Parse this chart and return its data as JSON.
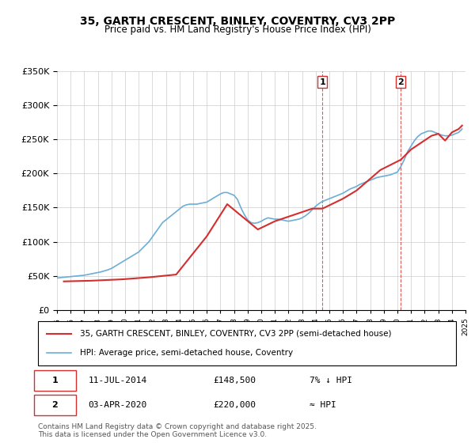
{
  "title": "35, GARTH CRESCENT, BINLEY, COVENTRY, CV3 2PP",
  "subtitle": "Price paid vs. HM Land Registry's House Price Index (HPI)",
  "legend_line1": "35, GARTH CRESCENT, BINLEY, COVENTRY, CV3 2PP (semi-detached house)",
  "legend_line2": "HPI: Average price, semi-detached house, Coventry",
  "marker1_label": "1",
  "marker2_label": "2",
  "marker1_date": "11-JUL-2014",
  "marker1_price": "£148,500",
  "marker1_note": "7% ↓ HPI",
  "marker2_date": "03-APR-2020",
  "marker2_price": "£220,000",
  "marker2_note": "≈ HPI",
  "footnote": "Contains HM Land Registry data © Crown copyright and database right 2025.\nThis data is licensed under the Open Government Licence v3.0.",
  "hpi_color": "#6baed6",
  "price_color": "#d32f2f",
  "marker_vline_color": "#d32f2f",
  "ylim": [
    0,
    350000
  ],
  "hpi_x": [
    1995.0,
    1995.25,
    1995.5,
    1995.75,
    1996.0,
    1996.25,
    1996.5,
    1996.75,
    1997.0,
    1997.25,
    1997.5,
    1997.75,
    1998.0,
    1998.25,
    1998.5,
    1998.75,
    1999.0,
    1999.25,
    1999.5,
    1999.75,
    2000.0,
    2000.25,
    2000.5,
    2000.75,
    2001.0,
    2001.25,
    2001.5,
    2001.75,
    2002.0,
    2002.25,
    2002.5,
    2002.75,
    2003.0,
    2003.25,
    2003.5,
    2003.75,
    2004.0,
    2004.25,
    2004.5,
    2004.75,
    2005.0,
    2005.25,
    2005.5,
    2005.75,
    2006.0,
    2006.25,
    2006.5,
    2006.75,
    2007.0,
    2007.25,
    2007.5,
    2007.75,
    2008.0,
    2008.25,
    2008.5,
    2008.75,
    2009.0,
    2009.25,
    2009.5,
    2009.75,
    2010.0,
    2010.25,
    2010.5,
    2010.75,
    2011.0,
    2011.25,
    2011.5,
    2011.75,
    2012.0,
    2012.25,
    2012.5,
    2012.75,
    2013.0,
    2013.25,
    2013.5,
    2013.75,
    2014.0,
    2014.25,
    2014.5,
    2014.75,
    2015.0,
    2015.25,
    2015.5,
    2015.75,
    2016.0,
    2016.25,
    2016.5,
    2016.75,
    2017.0,
    2017.25,
    2017.5,
    2017.75,
    2018.0,
    2018.25,
    2018.5,
    2018.75,
    2019.0,
    2019.25,
    2019.5,
    2019.75,
    2020.0,
    2020.25,
    2020.5,
    2020.75,
    2021.0,
    2021.25,
    2021.5,
    2021.75,
    2022.0,
    2022.25,
    2022.5,
    2022.75,
    2023.0,
    2023.25,
    2023.5,
    2023.75,
    2024.0,
    2024.25,
    2024.5,
    2024.75
  ],
  "hpi_y": [
    47000,
    47500,
    48000,
    48500,
    49000,
    49500,
    50000,
    50500,
    51000,
    52000,
    53000,
    54000,
    55000,
    56000,
    57500,
    59000,
    61000,
    64000,
    67000,
    70000,
    73000,
    76000,
    79000,
    82000,
    85000,
    90000,
    95000,
    100000,
    107000,
    114000,
    121000,
    128000,
    132000,
    136000,
    140000,
    144000,
    148000,
    152000,
    154000,
    155000,
    155000,
    155000,
    156000,
    157000,
    158000,
    161000,
    164000,
    167000,
    170000,
    172000,
    172000,
    170000,
    168000,
    162000,
    150000,
    140000,
    132000,
    128000,
    127000,
    128000,
    130000,
    133000,
    135000,
    134000,
    133000,
    133000,
    132000,
    131000,
    130000,
    131000,
    132000,
    133000,
    135000,
    138000,
    142000,
    147000,
    152000,
    156000,
    159000,
    161000,
    163000,
    165000,
    167000,
    169000,
    171000,
    174000,
    177000,
    179000,
    181000,
    184000,
    186000,
    188000,
    190000,
    192000,
    194000,
    195000,
    196000,
    197000,
    198000,
    200000,
    202000,
    210000,
    220000,
    232000,
    240000,
    248000,
    254000,
    258000,
    260000,
    262000,
    262000,
    260000,
    258000,
    256000,
    255000,
    255000,
    256000,
    258000,
    260000,
    265000
  ],
  "price_x": [
    1995.5,
    1997.5,
    1999.75,
    2001.75,
    2003.75,
    2006.0,
    2007.5,
    2009.75,
    2011.0,
    2013.75,
    2014.5,
    2016.0,
    2017.0,
    2018.75,
    2020.25,
    2021.0,
    2021.75,
    2022.5,
    2023.0,
    2023.5,
    2024.0,
    2024.5,
    2024.75
  ],
  "price_y": [
    42000,
    43000,
    45000,
    48000,
    52000,
    108000,
    155000,
    118000,
    130000,
    148500,
    148500,
    163000,
    175000,
    205000,
    220000,
    235000,
    245000,
    255000,
    258000,
    248000,
    260000,
    265000,
    270000
  ],
  "marker1_x": 2014.5,
  "marker2_x": 2020.25,
  "xmin": 1995,
  "xmax": 2025
}
